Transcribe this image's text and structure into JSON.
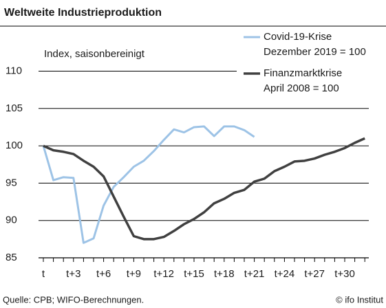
{
  "chart_data": {
    "type": "line",
    "title": "Weltweite Industrieproduktion",
    "y_label": "Index, saisonbereinigt",
    "source": "Quelle: CPB; WIFO-Berechnungen.",
    "copyright": "© ifo Institut",
    "categories": [
      "t",
      null,
      null,
      "t+3",
      null,
      null,
      "t+6",
      null,
      null,
      "t+9",
      null,
      null,
      "t+12",
      null,
      null,
      "t+15",
      null,
      null,
      "t+18",
      null,
      null,
      "t+21",
      null,
      null,
      "t+24",
      null,
      null,
      "t+27",
      null,
      null,
      "t+30",
      null,
      null
    ],
    "series": [
      {
        "name": "Covid-19-Krise",
        "base": "Dezember 2019 = 100",
        "color": "#9dc3e6",
        "values": [
          100,
          95.4,
          95.8,
          95.7,
          87,
          87.6,
          92,
          94.5,
          95.8,
          97.2,
          98,
          99.3,
          100.8,
          102.2,
          101.8,
          102.5,
          102.6,
          101.3,
          102.6,
          102.6,
          102.1,
          101.2,
          null,
          null,
          null,
          null,
          null,
          null,
          null,
          null,
          null,
          null,
          null
        ]
      },
      {
        "name": "Finanzmarktkrise",
        "base": "April 2008 = 100",
        "color": "#404040",
        "values": [
          100,
          99.4,
          99.2,
          98.9,
          98,
          97.2,
          95.9,
          93.2,
          90.5,
          87.9,
          87.5,
          87.5,
          87.8,
          88.6,
          89.5,
          90.2,
          91.1,
          92.3,
          92.9,
          93.7,
          94.1,
          95.2,
          95.6,
          96.6,
          97.2,
          97.9,
          98,
          98.3,
          98.8,
          99.2,
          99.7,
          100.4,
          101
        ]
      }
    ],
    "ylim": [
      85,
      110
    ],
    "yticks": [
      85,
      90,
      95,
      100,
      105,
      110
    ],
    "grid": true
  }
}
